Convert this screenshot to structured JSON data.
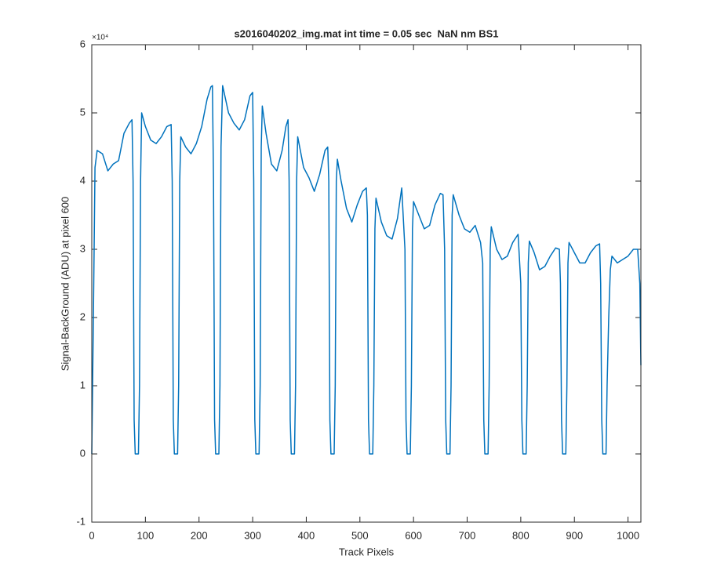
{
  "chart_data": {
    "type": "line",
    "title": "s2016040202_img.mat int time = 0.05 sec  NaN nm BS1",
    "x_label": "Track Pixels",
    "y_label": "Signal-BackGround (ADU) at pixel 600",
    "y_multiplier": "×10⁴",
    "xlim": [
      0,
      1024
    ],
    "xticks": [
      0,
      100,
      200,
      300,
      400,
      500,
      600,
      700,
      800,
      900,
      1000
    ],
    "ylim": [
      -10000,
      60000
    ],
    "yticks": [
      {
        "value": -10000,
        "label": "-1"
      },
      {
        "value": 0,
        "label": "0"
      },
      {
        "value": 10000,
        "label": "1"
      },
      {
        "value": 20000,
        "label": "2"
      },
      {
        "value": 30000,
        "label": "3"
      },
      {
        "value": 40000,
        "label": "4"
      },
      {
        "value": 50000,
        "label": "5"
      },
      {
        "value": 60000,
        "label": "6"
      }
    ],
    "grid": false,
    "x": [
      0,
      3,
      6,
      10,
      20,
      30,
      40,
      50,
      55,
      60,
      70,
      75,
      77,
      79,
      81,
      87,
      89,
      91,
      93,
      100,
      110,
      120,
      130,
      140,
      148,
      150,
      152,
      154,
      160,
      162,
      164,
      166,
      175,
      185,
      195,
      205,
      215,
      222,
      225,
      227,
      229,
      231,
      237,
      239,
      241,
      244,
      255,
      265,
      275,
      285,
      295,
      300,
      302,
      304,
      306,
      312,
      314,
      316,
      318,
      325,
      335,
      345,
      355,
      362,
      366,
      368,
      370,
      372,
      378,
      380,
      382,
      384,
      395,
      405,
      415,
      425,
      435,
      440,
      442,
      444,
      446,
      452,
      454,
      456,
      458,
      465,
      475,
      485,
      495,
      505,
      512,
      514,
      516,
      518,
      524,
      526,
      528,
      530,
      540,
      550,
      560,
      570,
      578,
      584,
      586,
      588,
      594,
      596,
      598,
      600,
      610,
      620,
      630,
      640,
      650,
      655,
      658,
      660,
      662,
      668,
      670,
      672,
      674,
      685,
      695,
      705,
      715,
      725,
      729,
      731,
      733,
      739,
      741,
      743,
      745,
      755,
      765,
      775,
      785,
      795,
      800,
      802,
      804,
      810,
      812,
      814,
      816,
      825,
      835,
      845,
      855,
      865,
      872,
      874,
      876,
      878,
      884,
      886,
      888,
      890,
      900,
      910,
      920,
      930,
      940,
      947,
      949,
      951,
      953,
      959,
      961,
      964,
      967,
      970,
      980,
      990,
      1000,
      1010,
      1018,
      1022,
      1024
    ],
    "series": [
      {
        "name": "signal",
        "color": "#0072BD",
        "values": [
          0,
          20000,
          42000,
          44500,
          44000,
          41500,
          42500,
          43000,
          45000,
          47000,
          48500,
          49000,
          40000,
          5000,
          0,
          0,
          10000,
          40000,
          50000,
          48000,
          46000,
          45500,
          46500,
          48000,
          48300,
          40000,
          5000,
          0,
          0,
          10000,
          40000,
          46500,
          45000,
          44000,
          45500,
          48000,
          52000,
          53800,
          54000,
          40000,
          5000,
          0,
          0,
          10000,
          45000,
          54000,
          50000,
          48500,
          47500,
          49000,
          52500,
          53000,
          40000,
          5000,
          0,
          0,
          10000,
          45000,
          51000,
          47000,
          42500,
          41500,
          44500,
          48000,
          49000,
          40000,
          5000,
          0,
          0,
          10000,
          40000,
          46500,
          42000,
          40500,
          38500,
          41000,
          44500,
          45000,
          40000,
          5000,
          0,
          0,
          10000,
          40000,
          43200,
          40000,
          36000,
          34000,
          36500,
          38500,
          39000,
          35000,
          5000,
          0,
          0,
          10000,
          33000,
          37500,
          34000,
          32000,
          31500,
          34500,
          39000,
          30000,
          5000,
          0,
          0,
          10000,
          33000,
          37000,
          35000,
          33000,
          33500,
          36500,
          38200,
          38000,
          30000,
          5000,
          0,
          0,
          10000,
          35000,
          38000,
          35000,
          33000,
          32500,
          33500,
          31000,
          28000,
          5000,
          0,
          0,
          10000,
          30000,
          33300,
          30000,
          28500,
          29000,
          31000,
          32200,
          25000,
          5000,
          0,
          0,
          10000,
          28000,
          31200,
          29500,
          27000,
          27500,
          29000,
          30200,
          30000,
          25000,
          5000,
          0,
          0,
          10000,
          28000,
          31000,
          29500,
          28000,
          28000,
          29500,
          30500,
          30800,
          25000,
          5000,
          0,
          0,
          10000,
          20000,
          27000,
          29000,
          28000,
          28500,
          29000,
          30000,
          30000,
          25000,
          13000
        ]
      }
    ]
  }
}
